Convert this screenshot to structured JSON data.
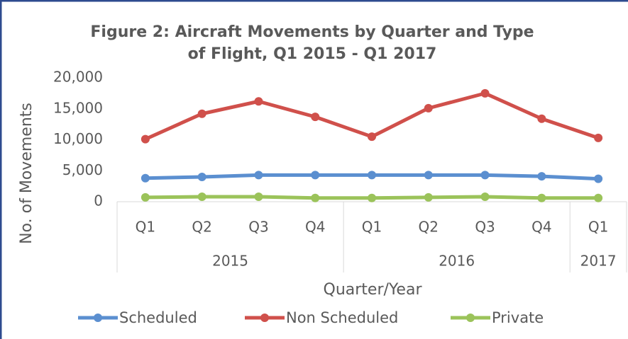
{
  "chart_data": {
    "type": "line",
    "title": [
      "Figure 2: Aircraft Movements by Quarter and Type",
      "of Flight, Q1 2015 - Q1 2017"
    ],
    "x_label": "Quarter/Year",
    "y_label": "No. of Movements",
    "year_groups": [
      {
        "label": "2015",
        "categories": [
          "Q1",
          "Q2",
          "Q3",
          "Q4"
        ]
      },
      {
        "label": "2016",
        "categories": [
          "Q1",
          "Q2",
          "Q3",
          "Q4"
        ]
      },
      {
        "label": "2017",
        "categories": [
          "Q1"
        ]
      }
    ],
    "series": [
      {
        "name": "Scheduled",
        "color": "#5b8fd0",
        "values": [
          3800,
          4000,
          4300,
          4300,
          4300,
          4300,
          4300,
          4100,
          3700
        ]
      },
      {
        "name": "Non Scheduled",
        "color": "#d0504b",
        "values": [
          10100,
          14200,
          16200,
          13700,
          10500,
          15100,
          17500,
          13400,
          10300
        ]
      },
      {
        "name": "Private",
        "color": "#9bc35a",
        "values": [
          700,
          800,
          800,
          600,
          600,
          700,
          800,
          600,
          600
        ]
      }
    ],
    "ylim": [
      0,
      20000
    ],
    "yticks": [
      {
        "value": 0,
        "label": "0"
      },
      {
        "value": 5000,
        "label": "5,000"
      },
      {
        "value": 10000,
        "label": "10,000"
      },
      {
        "value": 15000,
        "label": "15,000"
      },
      {
        "value": 20000,
        "label": "20,000"
      }
    ],
    "grid": false,
    "legend": "bottom"
  }
}
